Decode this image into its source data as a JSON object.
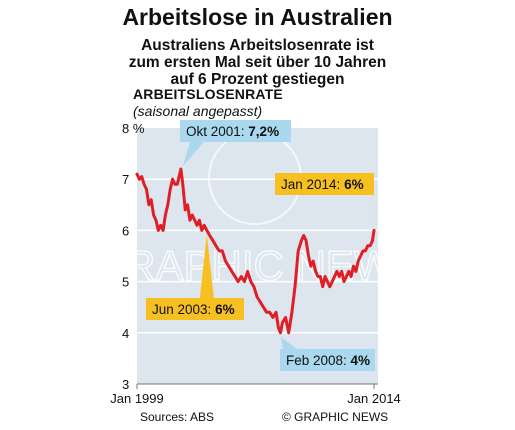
{
  "title": "Arbeitslose in Australien",
  "subtitle_lines": [
    "Australiens Arbeitslosenrate ist",
    "zum ersten Mal seit über 10 Jahren",
    "auf 6 Prozent gestiegen"
  ],
  "source": "Sources: ABS",
  "credit": "© GRAPHIC NEWS",
  "watermark": "GRAPHIC NEWS",
  "colors": {
    "plot_bg": "#dde6ee",
    "line": "#e01e26",
    "callout_blue": "#a9d8ef",
    "callout_orange": "#f6c021",
    "grid": "#ffffff",
    "axis": "#777777"
  },
  "chart_data": {
    "type": "line",
    "ylabel": "Arbeitslosenrate",
    "ylabel_note": "(saisonal angepasst)",
    "yunit": "%",
    "ylim": [
      3,
      8
    ],
    "yticks": [
      3,
      4,
      5,
      6,
      7,
      8
    ],
    "xlim": [
      1999.0,
      2014.25
    ],
    "xtick_labels": [
      "Jan 1999",
      "Jan 2014"
    ],
    "xtick_values": [
      1999.0,
      2014.0
    ],
    "grid": "horizontal",
    "series": [
      {
        "points": [
          [
            1999.0,
            7.1
          ],
          [
            1999.15,
            7.0
          ],
          [
            1999.3,
            7.05
          ],
          [
            1999.45,
            6.9
          ],
          [
            1999.6,
            6.8
          ],
          [
            1999.75,
            6.5
          ],
          [
            1999.9,
            6.6
          ],
          [
            2000.05,
            6.3
          ],
          [
            2000.2,
            6.2
          ],
          [
            2000.35,
            6.0
          ],
          [
            2000.5,
            6.1
          ],
          [
            2000.65,
            6.0
          ],
          [
            2000.8,
            6.3
          ],
          [
            2000.95,
            6.5
          ],
          [
            2001.1,
            6.8
          ],
          [
            2001.25,
            7.0
          ],
          [
            2001.4,
            6.9
          ],
          [
            2001.55,
            6.9
          ],
          [
            2001.7,
            7.1
          ],
          [
            2001.78,
            7.2
          ],
          [
            2001.9,
            6.9
          ],
          [
            2002.05,
            6.4
          ],
          [
            2002.2,
            6.5
          ],
          [
            2002.35,
            6.2
          ],
          [
            2002.5,
            6.3
          ],
          [
            2002.65,
            6.2
          ],
          [
            2002.8,
            6.1
          ],
          [
            2002.95,
            6.2
          ],
          [
            2003.1,
            6.0
          ],
          [
            2003.25,
            6.1
          ],
          [
            2003.42,
            6.0
          ],
          [
            2003.6,
            5.9
          ],
          [
            2003.8,
            5.8
          ],
          [
            2004.0,
            5.7
          ],
          [
            2004.2,
            5.6
          ],
          [
            2004.4,
            5.6
          ],
          [
            2004.6,
            5.4
          ],
          [
            2004.8,
            5.3
          ],
          [
            2005.0,
            5.2
          ],
          [
            2005.2,
            5.1
          ],
          [
            2005.4,
            5.0
          ],
          [
            2005.6,
            5.1
          ],
          [
            2005.8,
            5.0
          ],
          [
            2006.0,
            5.2
          ],
          [
            2006.2,
            5.0
          ],
          [
            2006.4,
            4.9
          ],
          [
            2006.6,
            4.7
          ],
          [
            2006.8,
            4.6
          ],
          [
            2007.0,
            4.5
          ],
          [
            2007.2,
            4.4
          ],
          [
            2007.4,
            4.4
          ],
          [
            2007.6,
            4.3
          ],
          [
            2007.8,
            4.4
          ],
          [
            2007.95,
            4.1
          ],
          [
            2008.08,
            4.0
          ],
          [
            2008.2,
            4.2
          ],
          [
            2008.4,
            4.3
          ],
          [
            2008.6,
            4.0
          ],
          [
            2008.8,
            4.4
          ],
          [
            2009.0,
            4.9
          ],
          [
            2009.2,
            5.6
          ],
          [
            2009.4,
            5.8
          ],
          [
            2009.55,
            5.9
          ],
          [
            2009.7,
            5.8
          ],
          [
            2009.85,
            5.5
          ],
          [
            2010.0,
            5.3
          ],
          [
            2010.15,
            5.4
          ],
          [
            2010.3,
            5.2
          ],
          [
            2010.45,
            5.1
          ],
          [
            2010.6,
            5.1
          ],
          [
            2010.75,
            4.9
          ],
          [
            2010.9,
            5.1
          ],
          [
            2011.05,
            5.0
          ],
          [
            2011.2,
            4.9
          ],
          [
            2011.35,
            5.0
          ],
          [
            2011.5,
            5.1
          ],
          [
            2011.65,
            5.2
          ],
          [
            2011.8,
            5.1
          ],
          [
            2011.95,
            5.2
          ],
          [
            2012.1,
            5.0
          ],
          [
            2012.25,
            5.1
          ],
          [
            2012.4,
            5.2
          ],
          [
            2012.55,
            5.1
          ],
          [
            2012.7,
            5.3
          ],
          [
            2012.85,
            5.2
          ],
          [
            2013.0,
            5.4
          ],
          [
            2013.15,
            5.5
          ],
          [
            2013.3,
            5.6
          ],
          [
            2013.45,
            5.6
          ],
          [
            2013.6,
            5.7
          ],
          [
            2013.75,
            5.7
          ],
          [
            2013.9,
            5.8
          ],
          [
            2014.0,
            6.0
          ]
        ]
      }
    ],
    "annotations": [
      {
        "label": "Okt 2001: ",
        "value": "7,2%",
        "x": 2001.78,
        "y": 7.2,
        "style": "blue"
      },
      {
        "label": "Jun 2003: ",
        "value": "6%",
        "x": 2003.42,
        "y": 6.0,
        "style": "orange"
      },
      {
        "label": "Feb 2008: ",
        "value": "4%",
        "x": 2008.08,
        "y": 4.0,
        "style": "blue"
      },
      {
        "label": "Jan 2014: ",
        "value": "6%",
        "x": 2014.0,
        "y": 6.0,
        "style": "orange"
      }
    ]
  }
}
